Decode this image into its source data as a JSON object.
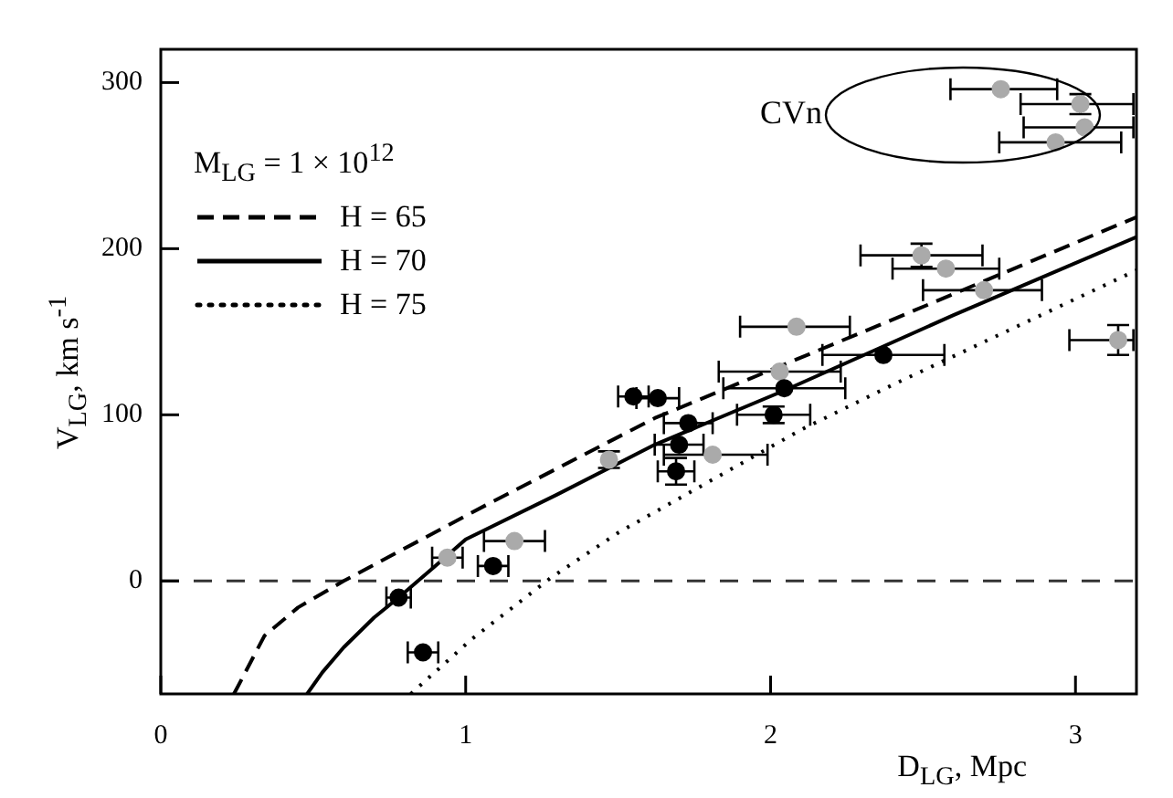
{
  "chart_data": {
    "type": "scatter",
    "xlabel": "D$_{LG}$, Mpc",
    "ylabel": "V$_{LG}$, km s$^{-1}$",
    "legend_title": "M$_{LG}$ = 1 × 10$^{12}$",
    "xlim": [
      0,
      3.2
    ],
    "xticks": [
      0,
      1,
      2,
      3
    ],
    "ylim": [
      -68,
      320
    ],
    "yticks": [
      0,
      100,
      200,
      300
    ],
    "grid": false,
    "legend": "top left",
    "marker": "circle",
    "ref_lines": [
      {
        "axis": "y",
        "value": 0,
        "color": "#333333",
        "line_style": "dashed"
      }
    ],
    "annotations": [
      "CVn"
    ],
    "series": [
      {
        "color": "#000000",
        "x": [
          0.78,
          0.86,
          1.09,
          1.55,
          1.63,
          1.73,
          1.7,
          1.69,
          2.01,
          2.045,
          2.37
        ],
        "values": [
          -10,
          -43,
          9,
          111,
          110,
          95,
          82,
          66,
          100,
          116,
          136
        ],
        "xerrors": [
          0.04,
          0.05,
          0.05,
          0.05,
          0.07,
          0.08,
          0.08,
          0.06,
          0.12,
          0.2,
          0.2
        ],
        "errors": [
          null,
          null,
          null,
          null,
          null,
          null,
          null,
          8,
          5,
          null,
          null
        ]
      },
      {
        "color": "#aaaaaa",
        "x": [
          0.94,
          1.16,
          1.47,
          1.81,
          2.03,
          2.085,
          2.495,
          2.575,
          2.7,
          3.14,
          2.755,
          3.016,
          3.03,
          2.935
        ],
        "values": [
          14,
          24,
          73,
          76,
          126,
          153,
          196,
          188,
          175,
          145,
          296,
          287,
          273,
          264
        ],
        "xerrors": [
          0.05,
          0.1,
          null,
          [
            1.65,
            1.99
          ],
          0.2,
          [
            1.9,
            2.26
          ],
          0.2,
          [
            2.4,
            2.75
          ],
          [
            2.5,
            2.89
          ],
          [
            2.98,
            3.19
          ],
          [
            2.59,
            2.94
          ],
          [
            2.82,
            3.19
          ],
          [
            2.83,
            3.19
          ],
          [
            2.75,
            3.15
          ]
        ],
        "errors": [
          null,
          null,
          5,
          null,
          null,
          null,
          7,
          null,
          null,
          9,
          null,
          6,
          null,
          null
        ]
      },
      {
        "type": "line",
        "name": "H = 65",
        "color": "#000000",
        "line_style": "dashed",
        "marker": "none",
        "x": [
          0.24,
          0.34,
          0.45,
          0.6,
          1.06,
          1.62,
          2.37,
          3.2
        ],
        "values": [
          -68,
          -33,
          -16,
          0,
          45,
          98,
          155,
          219
        ]
      },
      {
        "type": "line",
        "name": "H = 70",
        "color": "#000000",
        "line_style": "solid",
        "marker": "none",
        "x": [
          0.48,
          0.53,
          0.6,
          0.7,
          0.78,
          0.9,
          1.0,
          1.3,
          1.62,
          2.05,
          2.6,
          3.2
        ],
        "values": [
          -68,
          -55,
          -40,
          -22,
          -10,
          9,
          25,
          52,
          82,
          115,
          160,
          207
        ]
      },
      {
        "type": "line",
        "name": "H = 75",
        "color": "#000000",
        "line_style": "dotted",
        "marker": "none",
        "x": [
          0.82,
          1.02,
          1.28,
          1.5,
          2.1,
          2.4,
          3.2
        ],
        "values": [
          -68,
          -35,
          2,
          29,
          91,
          118,
          187
        ]
      }
    ]
  }
}
